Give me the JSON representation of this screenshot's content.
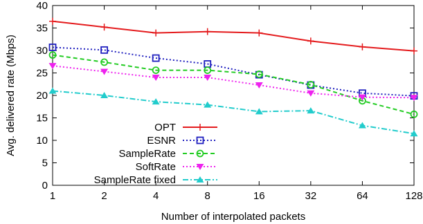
{
  "chart_data": {
    "type": "line",
    "title": "",
    "xlabel": "Number of interpolated packets",
    "ylabel": "Avg. delivered rate (Mbps)",
    "x": [
      "1",
      "2",
      "4",
      "8",
      "16",
      "32",
      "64",
      "128"
    ],
    "ylim": [
      0,
      40
    ],
    "yticks": [
      0,
      5,
      10,
      15,
      20,
      25,
      30,
      35,
      40
    ],
    "grid": false,
    "legend_position": "bottom-left",
    "series": [
      {
        "name": "OPT",
        "color": "#e41a1c",
        "marker": "plus",
        "dash": "solid",
        "values": [
          36.5,
          35.2,
          33.9,
          34.2,
          33.9,
          32.1,
          30.8,
          29.9
        ]
      },
      {
        "name": "ESNR",
        "color": "#1f1fbf",
        "marker": "square",
        "dash": "dot",
        "values": [
          30.7,
          30.1,
          28.3,
          27.0,
          24.6,
          22.3,
          20.5,
          19.9
        ]
      },
      {
        "name": "SampleRate",
        "color": "#22cc22",
        "marker": "circle",
        "dash": "dash",
        "values": [
          29.0,
          27.4,
          25.6,
          25.6,
          24.7,
          22.4,
          18.8,
          15.8
        ]
      },
      {
        "name": "SoftRate",
        "color": "#ee22ee",
        "marker": "triangle-down",
        "dash": "dot",
        "values": [
          26.6,
          25.3,
          24.0,
          24.0,
          22.3,
          20.5,
          19.6,
          19.5
        ]
      },
      {
        "name": "SampleRate fixed",
        "color": "#22cccc",
        "marker": "triangle-up",
        "dash": "dashdot",
        "values": [
          21.0,
          20.0,
          18.6,
          17.9,
          16.4,
          16.6,
          13.3,
          11.5
        ]
      }
    ]
  }
}
